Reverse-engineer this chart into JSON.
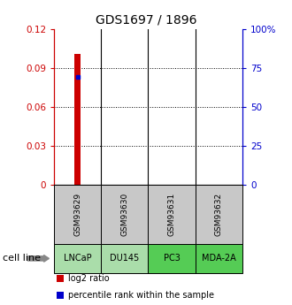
{
  "title": "GDS1697 / 1896",
  "samples": [
    "GSM93629",
    "GSM93630",
    "GSM93631",
    "GSM93632"
  ],
  "cell_lines": [
    "LNCaP",
    "DU145",
    "PC3",
    "MDA-2A"
  ],
  "cell_line_colors": [
    "#aaddaa",
    "#aaddaa",
    "#55cc55",
    "#55cc55"
  ],
  "log2_ratio_values": [
    0.101,
    null,
    null,
    null
  ],
  "percentile_rank_values": [
    0.083,
    null,
    null,
    null
  ],
  "percentile_rank_values_right": [
    69,
    null,
    null,
    null
  ],
  "ylim_left": [
    0,
    0.12
  ],
  "ylim_right": [
    0,
    100
  ],
  "yticks_left": [
    0,
    0.03,
    0.06,
    0.09,
    0.12
  ],
  "ytick_labels_left": [
    "0",
    "0.03",
    "0.06",
    "0.09",
    "0.12"
  ],
  "ytick_labels_right": [
    "0",
    "25",
    "50",
    "75",
    "100%"
  ],
  "left_axis_color": "#cc0000",
  "right_axis_color": "#0000cc",
  "bar_color": "#cc0000",
  "marker_color": "#0000cc",
  "sample_box_color": "#c8c8c8",
  "background_color": "#ffffff",
  "cell_line_label": "cell line",
  "legend_entries": [
    "log2 ratio",
    "percentile rank within the sample"
  ],
  "legend_colors": [
    "#cc0000",
    "#0000cc"
  ]
}
